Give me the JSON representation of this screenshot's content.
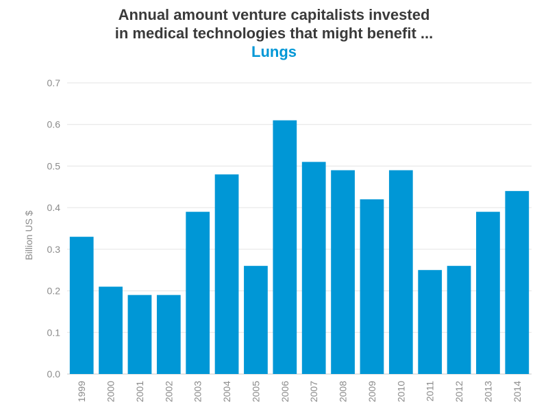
{
  "chart_data": {
    "type": "bar",
    "title_lines": [
      "Annual amount venture capitalists invested",
      "in medical technologies that might benefit ..."
    ],
    "subtitle": "Lungs",
    "xlabel": "",
    "ylabel": "Billion US $",
    "categories": [
      "1999",
      "2000",
      "2001",
      "2002",
      "2003",
      "2004",
      "2005",
      "2006",
      "2007",
      "2008",
      "2009",
      "2010",
      "2011",
      "2012",
      "2013",
      "2014"
    ],
    "values": [
      0.33,
      0.21,
      0.19,
      0.19,
      0.39,
      0.48,
      0.26,
      0.61,
      0.51,
      0.49,
      0.42,
      0.49,
      0.25,
      0.26,
      0.39,
      0.44
    ],
    "ylim": [
      0,
      0.7
    ],
    "yticks": [
      "0.0",
      "0.1",
      "0.2",
      "0.3",
      "0.4",
      "0.5",
      "0.6",
      "0.7"
    ],
    "grid": true,
    "legend": "none",
    "colors": {
      "bar": "#0097d6",
      "title": "#3a3a3a",
      "subtitle": "#0097d6",
      "grid": "#e3e3e3",
      "axis": "#c8c8c8",
      "tick_text": "#8a8a8a"
    }
  }
}
